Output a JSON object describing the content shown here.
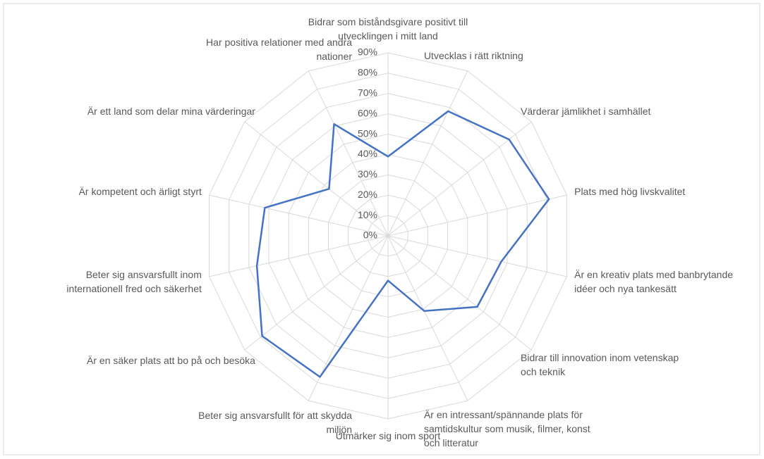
{
  "chart_data": {
    "type": "radar",
    "categories": [
      "Bidrar som biståndsgivare positivt till utvecklingen i mitt land",
      "Utvecklas i rätt riktning",
      "Värderar jämlikhet i samhället",
      "Plats med hög livskvalitet",
      "Är en kreativ plats med banbrytande idéer och nya tankesätt",
      "Bidrar till innovation inom vetenskap och teknik",
      "Är en intressant/spännande plats för samtidskultur som musik, filmer, konst och litteratur",
      "Utmärker sig inom sport",
      "Beter sig ansvarsfullt för att skydda miljön",
      "Är en säker plats att bo på och besöka",
      "Beter sig ansvarsfullt inom internationell fred och säkerhet",
      "Är kompetent och ärligt styrt",
      "Är ett land som delar mina värderingar",
      "Har positiva relationer med andra nationer"
    ],
    "values": [
      39,
      68,
      76,
      81,
      57,
      56,
      41,
      22,
      77,
      79,
      66,
      62,
      37,
      61
    ],
    "color": "#4472c4",
    "ylim": [
      0,
      90
    ],
    "yticks": [
      {
        "value": 0,
        "label": "0%"
      },
      {
        "value": 10,
        "label": "10%"
      },
      {
        "value": 20,
        "label": "20%"
      },
      {
        "value": 30,
        "label": "30%"
      },
      {
        "value": 40,
        "label": "40%"
      },
      {
        "value": 50,
        "label": "50%"
      },
      {
        "value": 60,
        "label": "60%"
      },
      {
        "value": 70,
        "label": "70%"
      },
      {
        "value": 80,
        "label": "80%"
      },
      {
        "value": 90,
        "label": "90%"
      }
    ],
    "grid": true
  }
}
